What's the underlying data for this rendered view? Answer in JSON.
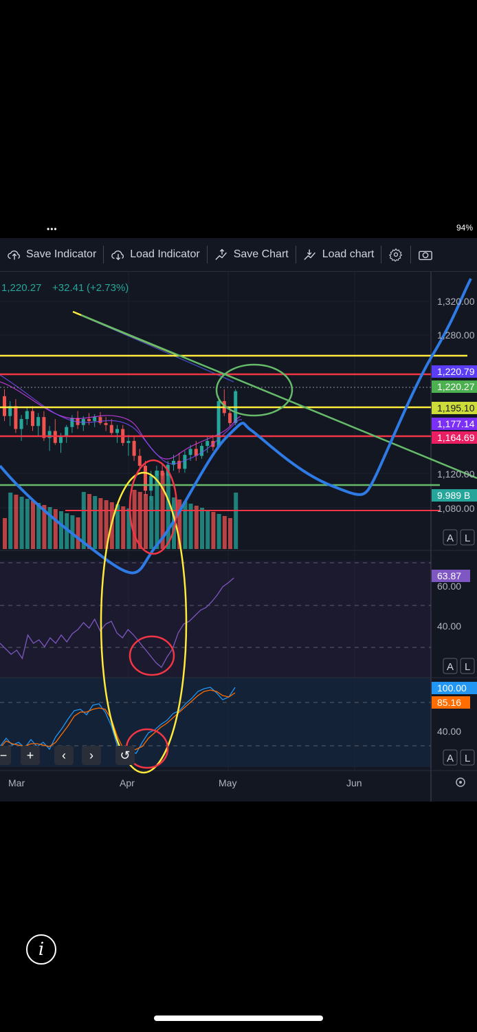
{
  "status_bar": {
    "left_dots": "•••",
    "right": "94%"
  },
  "toolbar": {
    "save_indicator": "Save Indicator",
    "load_indicator": "Load Indicator",
    "save_chart": "Save Chart",
    "load_chart": "Load chart"
  },
  "legend": {
    "price": "1,220.27",
    "change": "+32.41",
    "change_pct": "(+2.73%)"
  },
  "price_axis": {
    "ticks": [
      "1,320.00",
      "1,280.00",
      "1,120.00",
      "1,080.00"
    ],
    "badges": [
      {
        "text": "1,220.79",
        "color": "#5b3df5"
      },
      {
        "text": "1,220.27",
        "color": "#4caf50"
      },
      {
        "text": "1,195.10",
        "color": "#cddc39"
      },
      {
        "text": "1,177.14",
        "color": "#7b2ff7"
      },
      {
        "text": "1,164.69",
        "color": "#e91e63"
      },
      {
        "text": "9.989 B",
        "color": "#26a69a"
      }
    ]
  },
  "rsi_axis": {
    "badge": "63.87",
    "badge_color": "#7e57c2",
    "ticks": [
      "60.00",
      "40.00"
    ]
  },
  "stoch_axis": {
    "badges": [
      {
        "text": "100.00",
        "color": "#2196f3"
      },
      {
        "text": "85.16",
        "color": "#ff6d00"
      }
    ],
    "ticks": [
      "40.00"
    ]
  },
  "pane_buttons": {
    "auto": "A",
    "log": "L"
  },
  "time_axis": [
    "Mar",
    "Apr",
    "May",
    "Jun"
  ],
  "nav": {
    "minus": "−",
    "plus": "+",
    "prev": "‹",
    "next": "›",
    "reset": "↺"
  },
  "icons": [
    "cloud-upload-icon",
    "cloud-download-icon",
    "save-chart-icon",
    "load-chart-icon",
    "gear-icon",
    "camera-icon",
    "info-icon"
  ],
  "colors": {
    "up": "#26a69a",
    "down": "#ef5350",
    "bg": "#131722",
    "yellow": "#ffeb3b",
    "red": "#f23645",
    "green": "#66bb6a",
    "blue": "#2f7be6"
  },
  "chart_data": {
    "type": "candlestick",
    "ylim": [
      1060,
      1340
    ],
    "candles_approx": [
      [
        1215,
        1222,
        1190,
        1195
      ],
      [
        1195,
        1210,
        1185,
        1205
      ],
      [
        1205,
        1212,
        1178,
        1182
      ],
      [
        1182,
        1196,
        1170,
        1192
      ],
      [
        1192,
        1204,
        1186,
        1200
      ],
      [
        1200,
        1205,
        1180,
        1185
      ],
      [
        1185,
        1198,
        1175,
        1194
      ],
      [
        1194,
        1200,
        1170,
        1173
      ],
      [
        1173,
        1185,
        1160,
        1180
      ],
      [
        1180,
        1192,
        1166,
        1168
      ],
      [
        1168,
        1178,
        1158,
        1175
      ],
      [
        1175,
        1186,
        1168,
        1184
      ],
      [
        1184,
        1196,
        1178,
        1193
      ],
      [
        1193,
        1200,
        1182,
        1186
      ],
      [
        1186,
        1195,
        1180,
        1192
      ],
      [
        1192,
        1198,
        1186,
        1190
      ],
      [
        1190,
        1197,
        1184,
        1194
      ],
      [
        1194,
        1199,
        1186,
        1188
      ],
      [
        1188,
        1194,
        1180,
        1186
      ],
      [
        1186,
        1192,
        1176,
        1178
      ],
      [
        1178,
        1186,
        1168,
        1182
      ],
      [
        1182,
        1186,
        1165,
        1168
      ],
      [
        1168,
        1176,
        1155,
        1170
      ],
      [
        1170,
        1174,
        1150,
        1155
      ],
      [
        1155,
        1162,
        1140,
        1145
      ],
      [
        1145,
        1150,
        1115,
        1120
      ],
      [
        1120,
        1140,
        1110,
        1135
      ],
      [
        1135,
        1145,
        1128,
        1140
      ],
      [
        1140,
        1148,
        1132,
        1135
      ],
      [
        1135,
        1150,
        1130,
        1146
      ],
      [
        1146,
        1156,
        1140,
        1150
      ],
      [
        1150,
        1158,
        1138,
        1142
      ],
      [
        1142,
        1160,
        1138,
        1156
      ],
      [
        1156,
        1166,
        1150,
        1162
      ],
      [
        1162,
        1170,
        1150,
        1155
      ],
      [
        1155,
        1168,
        1152,
        1165
      ],
      [
        1165,
        1175,
        1158,
        1170
      ],
      [
        1170,
        1176,
        1160,
        1164
      ],
      [
        1164,
        1215,
        1162,
        1210
      ],
      [
        1210,
        1222,
        1195,
        1198
      ],
      [
        1198,
        1204,
        1185,
        1188
      ],
      [
        1188,
        1222,
        1186,
        1220
      ]
    ],
    "horizontal_lines": [
      1280,
      1228,
      1195,
      1164,
      1108,
      1083
    ]
  }
}
